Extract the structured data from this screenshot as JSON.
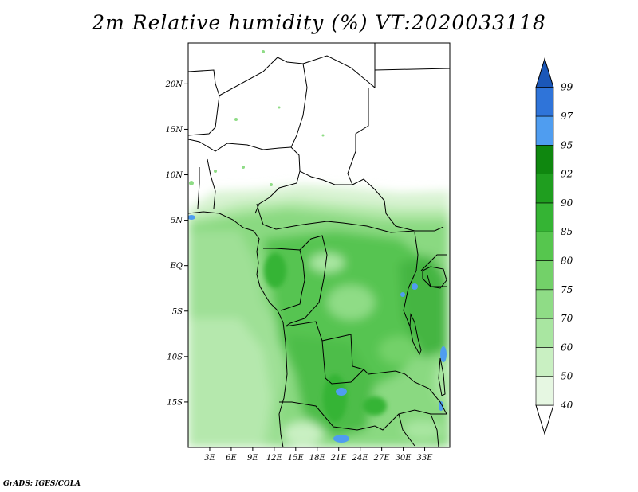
{
  "title": "2m Relative humidity (%) VT:2020033118",
  "footer": "GrADS: IGES/COLA",
  "map": {
    "lat_range": [
      -20,
      24.5
    ],
    "lon_range": [
      0,
      36.5
    ],
    "lat_ticks": [
      {
        "value": 20,
        "label": "20N"
      },
      {
        "value": 15,
        "label": "15N"
      },
      {
        "value": 10,
        "label": "10N"
      },
      {
        "value": 5,
        "label": "5N"
      },
      {
        "value": 0,
        "label": "EQ"
      },
      {
        "value": -5,
        "label": "5S"
      },
      {
        "value": -10,
        "label": "10S"
      },
      {
        "value": -15,
        "label": "15S"
      }
    ],
    "lon_ticks": [
      {
        "value": 3,
        "label": "3E"
      },
      {
        "value": 6,
        "label": "6E"
      },
      {
        "value": 9,
        "label": "9E"
      },
      {
        "value": 12,
        "label": "12E"
      },
      {
        "value": 15,
        "label": "15E"
      },
      {
        "value": 18,
        "label": "18E"
      },
      {
        "value": 21,
        "label": "21E"
      },
      {
        "value": 24,
        "label": "24E"
      },
      {
        "value": 27,
        "label": "27E"
      },
      {
        "value": 30,
        "label": "30E"
      },
      {
        "value": 33,
        "label": "33E"
      }
    ]
  },
  "colorbar": {
    "labels": [
      "40",
      "50",
      "60",
      "70",
      "75",
      "80",
      "85",
      "90",
      "92",
      "95",
      "97",
      "99"
    ],
    "colors": [
      "#ffffff",
      "#e6f7e2",
      "#c9f0c2",
      "#a9e6a1",
      "#8fdc86",
      "#73d169",
      "#56c64e",
      "#35b434",
      "#1f9e1f",
      "#0f870f",
      "#4f9df0",
      "#2f74d9",
      "#1b57b8"
    ]
  }
}
